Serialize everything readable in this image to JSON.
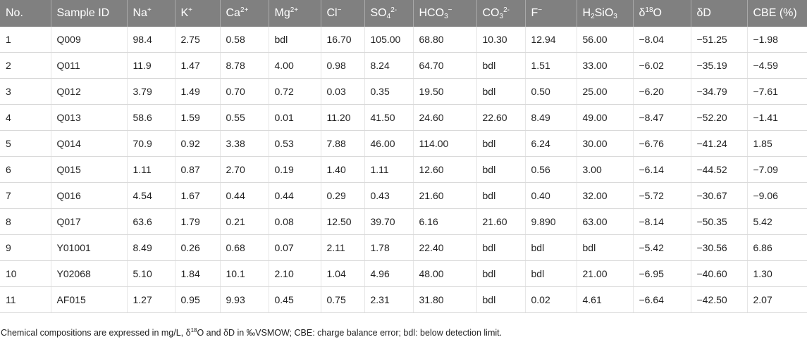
{
  "table": {
    "headers": [
      [
        {
          "text": "No."
        }
      ],
      [
        {
          "text": "Sample ID"
        }
      ],
      [
        {
          "text": "Na"
        },
        {
          "sup": "+"
        }
      ],
      [
        {
          "text": "K"
        },
        {
          "sup": "+"
        }
      ],
      [
        {
          "text": "Ca"
        },
        {
          "sup": "2+"
        }
      ],
      [
        {
          "text": "Mg"
        },
        {
          "sup": "2+"
        }
      ],
      [
        {
          "text": "Cl"
        },
        {
          "sup": "−"
        }
      ],
      [
        {
          "text": "SO"
        },
        {
          "sub": "4"
        },
        {
          "sup": "2-"
        }
      ],
      [
        {
          "text": "HCO"
        },
        {
          "sub": "3"
        },
        {
          "sup": "−"
        }
      ],
      [
        {
          "text": "CO"
        },
        {
          "sub": "3"
        },
        {
          "sup": "2-"
        }
      ],
      [
        {
          "text": "F"
        },
        {
          "sup": "−"
        }
      ],
      [
        {
          "text": "H"
        },
        {
          "sub": "2"
        },
        {
          "text": "SiO"
        },
        {
          "sub": "3"
        }
      ],
      [
        {
          "text": "δ"
        },
        {
          "sup": "18"
        },
        {
          "text": "O"
        }
      ],
      [
        {
          "text": "δD"
        }
      ],
      [
        {
          "text": "CBE (%)"
        }
      ]
    ],
    "rows": [
      [
        "1",
        "Q009",
        "98.4",
        "2.75",
        "0.58",
        "bdl",
        "16.70",
        "105.00",
        "68.80",
        "10.30",
        "12.94",
        "56.00",
        "−8.04",
        "−51.25",
        "−1.98"
      ],
      [
        "2",
        "Q011",
        "11.9",
        "1.47",
        "8.78",
        "4.00",
        "0.98",
        "8.24",
        "64.70",
        "bdl",
        "1.51",
        "33.00",
        "−6.02",
        "−35.19",
        "−4.59"
      ],
      [
        "3",
        "Q012",
        "3.79",
        "1.49",
        "0.70",
        "0.72",
        "0.03",
        "0.35",
        "19.50",
        "bdl",
        "0.50",
        "25.00",
        "−6.20",
        "−34.79",
        "−7.61"
      ],
      [
        "4",
        "Q013",
        "58.6",
        "1.59",
        "0.55",
        "0.01",
        "11.20",
        "41.50",
        "24.60",
        "22.60",
        "8.49",
        "49.00",
        "−8.47",
        "−52.20",
        "−1.41"
      ],
      [
        "5",
        "Q014",
        "70.9",
        "0.92",
        "3.38",
        "0.53",
        "7.88",
        "46.00",
        "114.00",
        "bdl",
        "6.24",
        "30.00",
        "−6.76",
        "−41.24",
        "1.85"
      ],
      [
        "6",
        "Q015",
        "1.11",
        "0.87",
        "2.70",
        "0.19",
        "1.40",
        "1.11",
        "12.60",
        "bdl",
        "0.56",
        "3.00",
        "−6.14",
        "−44.52",
        "−7.09"
      ],
      [
        "7",
        "Q016",
        "4.54",
        "1.67",
        "0.44",
        "0.44",
        "0.29",
        "0.43",
        "21.60",
        "bdl",
        "0.40",
        "32.00",
        "−5.72",
        "−30.67",
        "−9.06"
      ],
      [
        "8",
        "Q017",
        "63.6",
        "1.79",
        "0.21",
        "0.08",
        "12.50",
        "39.70",
        "6.16",
        "21.60",
        "9.890",
        "63.00",
        "−8.14",
        "−50.35",
        "5.42"
      ],
      [
        "9",
        "Y01001",
        "8.49",
        "0.26",
        "0.68",
        "0.07",
        "2.11",
        "1.78",
        "22.40",
        "bdl",
        "bdl",
        "bdl",
        "−5.42",
        "−30.56",
        "6.86"
      ],
      [
        "10",
        "Y02068",
        "5.10",
        "1.84",
        "10.1",
        "2.10",
        "1.04",
        "4.96",
        "48.00",
        "bdl",
        "bdl",
        "21.00",
        "−6.95",
        "−40.60",
        "1.30"
      ],
      [
        "11",
        "AF015",
        "1.27",
        "0.95",
        "9.93",
        "0.45",
        "0.75",
        "2.31",
        "31.80",
        "bdl",
        "0.02",
        "4.61",
        "−6.64",
        "−42.50",
        "2.07"
      ]
    ],
    "footnote": [
      {
        "text": "Chemical compositions are expressed in mg/L, δ"
      },
      {
        "sup": "18"
      },
      {
        "text": "O and δD in ‰VSMOW; CBE: charge balance error; bdl: below detection limit."
      }
    ]
  }
}
